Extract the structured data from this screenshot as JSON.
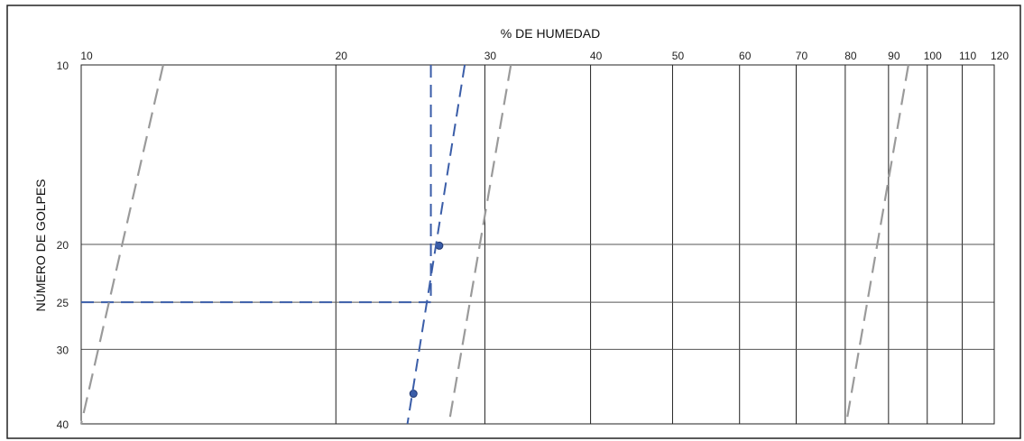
{
  "chart_data": {
    "type": "scatter",
    "title": "",
    "xlabel": "% DE HUMEDAD",
    "ylabel": "NÚMERO DE GOLPES",
    "x_scale": "log",
    "y_scale": "log",
    "xlim": [
      10,
      120
    ],
    "ylim": [
      10,
      40
    ],
    "x_ticks": [
      10,
      20,
      30,
      40,
      50,
      60,
      70,
      80,
      90,
      100,
      110,
      120
    ],
    "y_ticks": [
      10,
      20,
      25,
      30,
      40
    ],
    "grid": true,
    "colors": {
      "measured": "#3a5da8",
      "reference": "#9a9a9a",
      "grid_vertical": "#222222",
      "grid_horizontal": "#555555",
      "frame": "#222222"
    },
    "series": [
      {
        "role": "points",
        "style": "marker",
        "points": [
          [
            26.5,
            20.1
          ],
          [
            24.7,
            35.6
          ]
        ]
      },
      {
        "role": "flow-line",
        "style": "dashed",
        "points": [
          [
            28.4,
            10
          ],
          [
            24.3,
            40
          ]
        ]
      },
      {
        "role": "liquid-limit-vertical",
        "style": "dashed",
        "points": [
          [
            25.9,
            10
          ],
          [
            25.9,
            25
          ]
        ]
      },
      {
        "role": "liquid-limit-horizontal",
        "style": "dashed",
        "points": [
          [
            10,
            25
          ],
          [
            25.9,
            25
          ]
        ]
      },
      {
        "role": "reference-1",
        "style": "dashed-gray",
        "points": [
          [
            12.5,
            10
          ],
          [
            10,
            40
          ]
        ]
      },
      {
        "role": "reference-2",
        "style": "dashed-gray",
        "points": [
          [
            32.2,
            10
          ],
          [
            27.2,
            40
          ]
        ]
      },
      {
        "role": "reference-3",
        "style": "dashed-gray",
        "points": [
          [
            95.0,
            10
          ],
          [
            80.2,
            40
          ]
        ]
      }
    ]
  }
}
